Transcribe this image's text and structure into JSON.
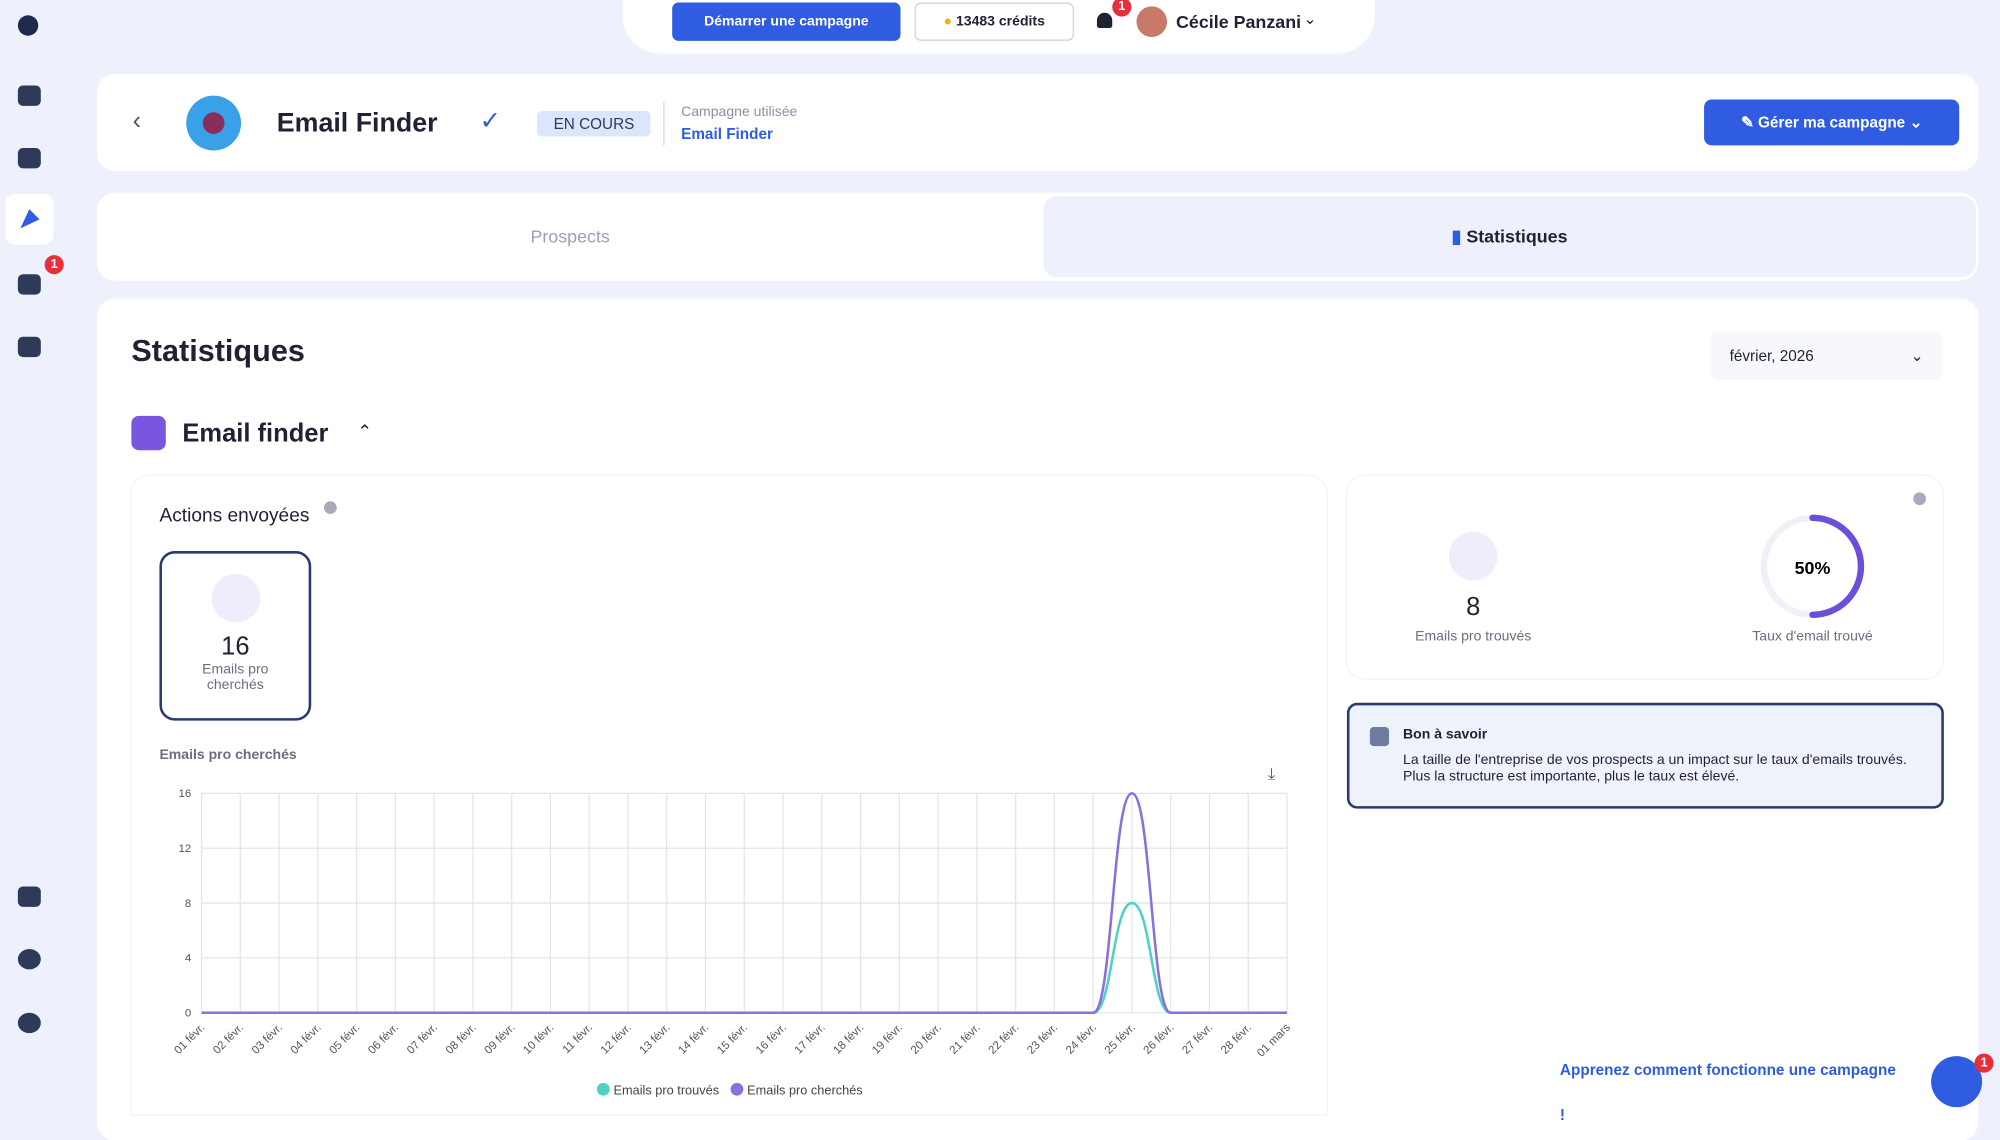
{
  "topbar": {
    "start_button": "Démarrer une campagne",
    "credits": "13483 crédits",
    "notification_badge": "1",
    "user_name": "Cécile Panzani"
  },
  "sidebar": {
    "messages_badge": "1"
  },
  "header": {
    "title": "Email Finder",
    "status": "EN COURS",
    "campaign_label": "Campagne utilisée",
    "campaign_name": "Email Finder",
    "manage_button": "Gérer ma campagne"
  },
  "tabs": [
    "Prospects",
    "Statistiques"
  ],
  "page": {
    "title": "Statistiques",
    "month": "février, 2026",
    "section": "Email finder"
  },
  "actions": {
    "title": "Actions envoyées",
    "count": 16,
    "count_label": "Emails pro cherchés"
  },
  "summary": {
    "found": 8,
    "found_label": "Emails pro trouvés",
    "rate": {
      "value": 50,
      "label": "50%"
    },
    "rate_label": "Taux d'email trouvé",
    "rate_color": "#6b4fd8"
  },
  "info": {
    "title": "Bon à savoir",
    "text": "La taille de l'entreprise de vos prospects a un impact sur le taux d'emails trouvés. Plus la structure est importante, plus le taux est élevé."
  },
  "help_link": "Apprenez comment fonctionne une campagne !",
  "chat_badge": "1",
  "chart_data": {
    "type": "line",
    "title": "Emails pro cherchés",
    "categories": [
      "01 févr.",
      "02 févr.",
      "03 févr.",
      "04 févr.",
      "05 févr.",
      "06 févr.",
      "07 févr.",
      "08 févr.",
      "09 févr.",
      "10 févr.",
      "11 févr.",
      "12 févr.",
      "13 févr.",
      "14 févr.",
      "15 févr.",
      "16 févr.",
      "17 févr.",
      "18 févr.",
      "19 févr.",
      "20 févr.",
      "21 févr.",
      "22 févr.",
      "23 févr.",
      "24 févr.",
      "25 févr.",
      "26 févr.",
      "27 févr.",
      "28 févr.",
      "01 mars"
    ],
    "series": [
      {
        "name": "Emails pro trouvés",
        "color": "#4fd1c5",
        "values": [
          0,
          0,
          0,
          0,
          0,
          0,
          0,
          0,
          0,
          0,
          0,
          0,
          0,
          0,
          0,
          0,
          0,
          0,
          0,
          0,
          0,
          0,
          0,
          0,
          8,
          0,
          0,
          0,
          0
        ]
      },
      {
        "name": "Emails pro cherchés",
        "color": "#8b6fdc",
        "values": [
          0,
          0,
          0,
          0,
          0,
          0,
          0,
          0,
          0,
          0,
          0,
          0,
          0,
          0,
          0,
          0,
          0,
          0,
          0,
          0,
          0,
          0,
          0,
          0,
          16,
          0,
          0,
          0,
          0
        ]
      }
    ],
    "ylim": [
      0,
      16
    ],
    "yticks": [
      0,
      4,
      8,
      12,
      16
    ],
    "grid": true
  }
}
